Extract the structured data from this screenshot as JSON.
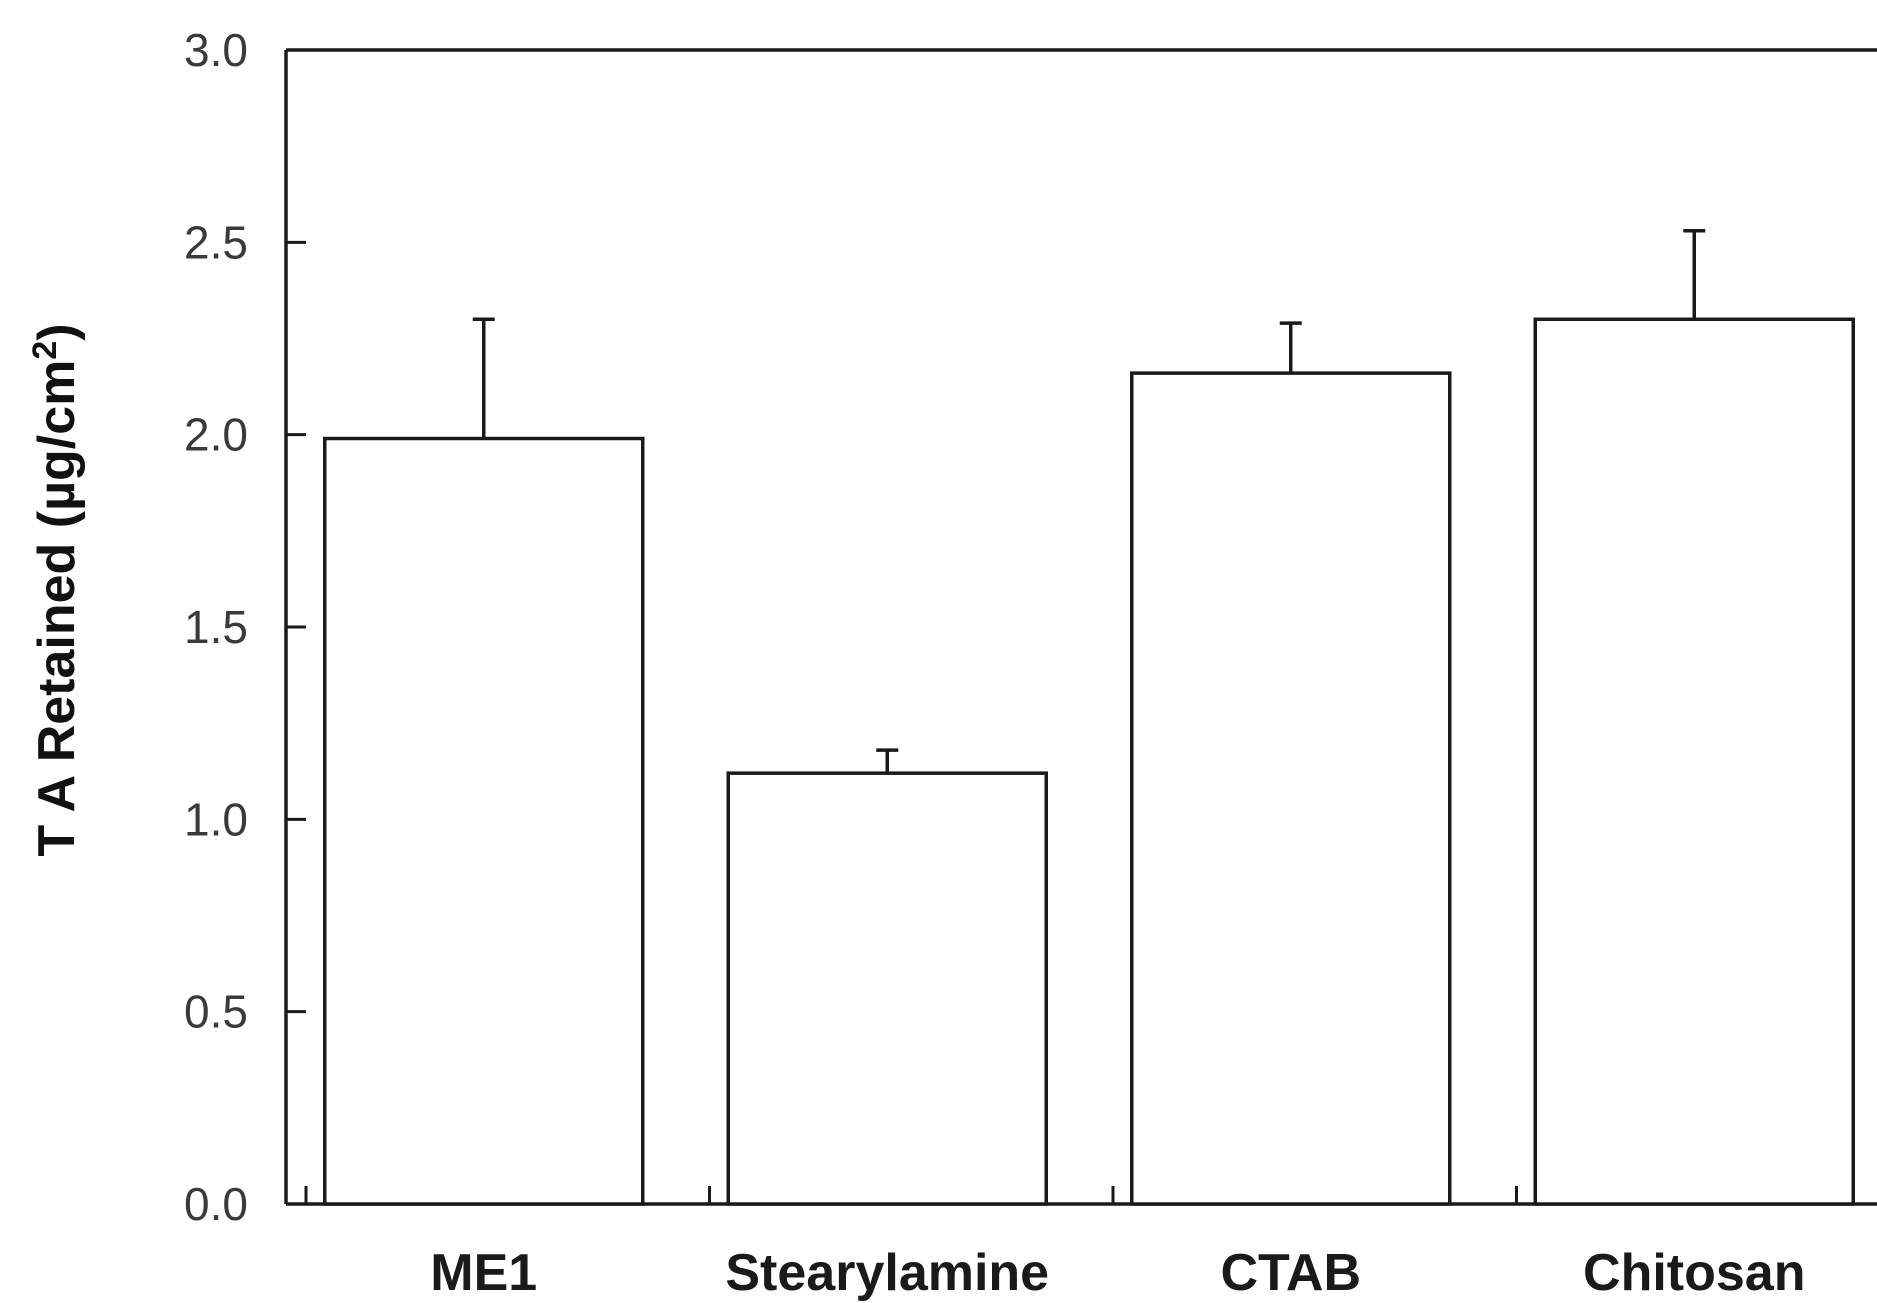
{
  "chart_data": {
    "type": "bar",
    "title": "",
    "xlabel": "",
    "ylabel": "T A Retained (µg/cm",
    "ylabel_superscript": "2",
    "ylabel_close": ")",
    "categories": [
      "ME1",
      "Stearylamine",
      "CTAB",
      "Chitosan"
    ],
    "series": [
      {
        "values": [
          1.99,
          1.12,
          2.16,
          2.3
        ],
        "errors": [
          0.31,
          0.06,
          0.13,
          0.23
        ]
      }
    ],
    "ylim": [
      0,
      3.0
    ],
    "yticks": [
      "0.0",
      "0.5",
      "1.0",
      "1.5",
      "2.0",
      "2.5",
      "3.0"
    ],
    "grid": false,
    "legend": "none",
    "bar_fill": "#ffffff",
    "bar_stroke": "#1a1a1a"
  }
}
